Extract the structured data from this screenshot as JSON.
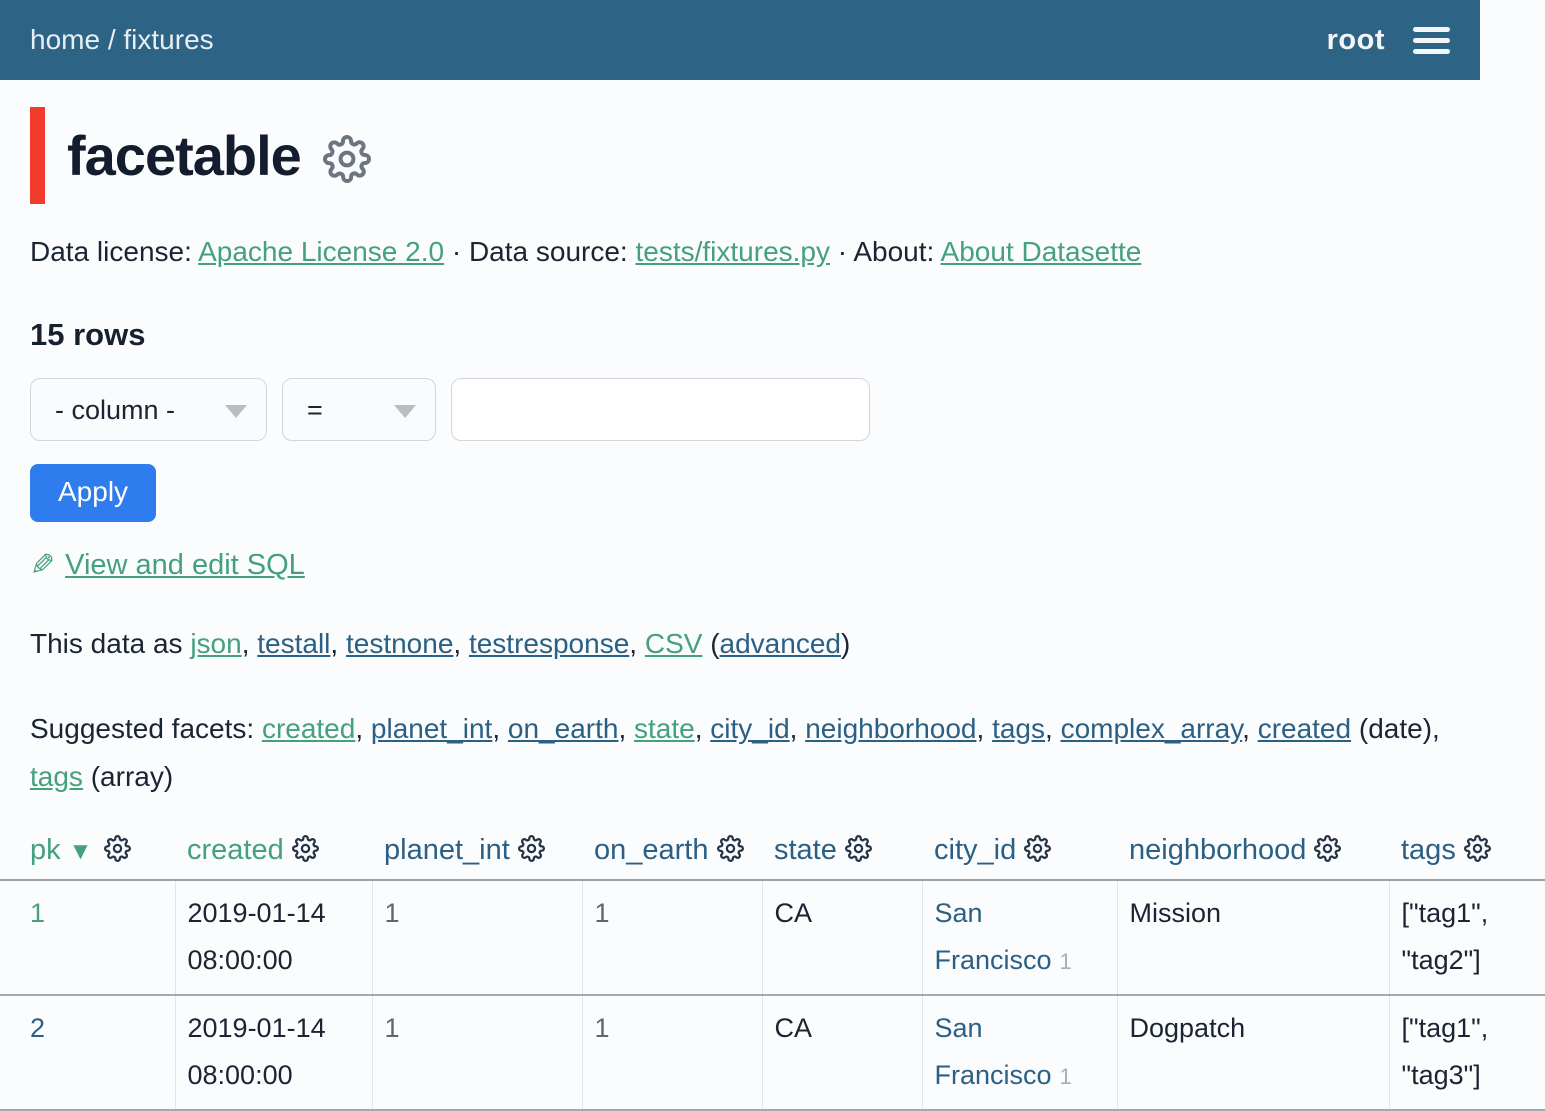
{
  "theme": {
    "header_bg": "#2d6486",
    "link_green": "#44a17b",
    "link_blue": "#2b6084",
    "accent_red": "#f03b2d",
    "button_blue": "#2e7ced"
  },
  "nav": {
    "breadcrumb_parts": [
      {
        "link": "home",
        "color": "white"
      },
      {
        "text": " / "
      },
      {
        "link": "fixtures",
        "color": "white"
      }
    ],
    "user": "root"
  },
  "page": {
    "title": "facetable"
  },
  "metadata_line": {
    "parts": [
      {
        "text": "Data license: "
      },
      {
        "link": "Apache License 2.0",
        "color": "green"
      },
      {
        "text": " · Data source: "
      },
      {
        "link": "tests/fixtures.py",
        "color": "green"
      },
      {
        "text": " · About: "
      },
      {
        "link": "About Datasette",
        "color": "green"
      }
    ]
  },
  "row_count": "15 rows",
  "filter": {
    "column_value": "- column -",
    "operator_value": "=",
    "input_value": "",
    "apply_label": "Apply"
  },
  "sql_link_label": "View and edit SQL",
  "export_line": {
    "parts": [
      {
        "text": "This data as "
      },
      {
        "link": "json",
        "color": "green"
      },
      {
        "text": ", "
      },
      {
        "link": "testall",
        "color": "blue"
      },
      {
        "text": ", "
      },
      {
        "link": "testnone",
        "color": "blue"
      },
      {
        "text": ", "
      },
      {
        "link": "testresponse",
        "color": "blue"
      },
      {
        "text": ", "
      },
      {
        "link": "CSV",
        "color": "green"
      },
      {
        "text": " ("
      },
      {
        "link": "advanced",
        "color": "blue"
      },
      {
        "text": ")"
      }
    ]
  },
  "facets_line": {
    "parts": [
      {
        "text": "Suggested facets: "
      },
      {
        "link": "created",
        "color": "green"
      },
      {
        "text": ", "
      },
      {
        "link": "planet_int",
        "color": "blue"
      },
      {
        "text": ", "
      },
      {
        "link": "on_earth",
        "color": "blue"
      },
      {
        "text": ", "
      },
      {
        "link": "state",
        "color": "green"
      },
      {
        "text": ", "
      },
      {
        "link": "city_id",
        "color": "blue"
      },
      {
        "text": ", "
      },
      {
        "link": "neighborhood",
        "color": "blue"
      },
      {
        "text": ", "
      },
      {
        "link": "tags",
        "color": "blue"
      },
      {
        "text": ", "
      },
      {
        "link": "complex_array",
        "color": "blue"
      },
      {
        "text": ", "
      },
      {
        "link": "created",
        "color": "blue"
      },
      {
        "text": " (date), "
      },
      {
        "link": "tags",
        "color": "green"
      },
      {
        "text": " (array)"
      }
    ]
  },
  "table": {
    "columns": [
      {
        "label": "pk",
        "color": "green",
        "sort": "desc"
      },
      {
        "label": "created",
        "color": "green"
      },
      {
        "label": "planet_int",
        "color": "blue"
      },
      {
        "label": "on_earth",
        "color": "blue"
      },
      {
        "label": "state",
        "color": "blue"
      },
      {
        "label": "city_id",
        "color": "blue"
      },
      {
        "label": "neighborhood",
        "color": "blue"
      },
      {
        "label": "tags",
        "color": "blue"
      }
    ],
    "rows": [
      {
        "cells": [
          {
            "text": "1",
            "style": "link-green"
          },
          {
            "text": "2019-01-14 08:00:00",
            "style": "dark"
          },
          {
            "text": "1",
            "style": "muted"
          },
          {
            "text": "1",
            "style": "muted"
          },
          {
            "text": "CA",
            "style": "dark"
          },
          {
            "text": "San Francisco",
            "style": "link-blue",
            "suffix": "1"
          },
          {
            "text": "Mission",
            "style": "dark"
          },
          {
            "text": "[\"tag1\", \"tag2\"]",
            "style": "dark"
          }
        ]
      },
      {
        "cells": [
          {
            "text": "2",
            "style": "link-blue"
          },
          {
            "text": "2019-01-14 08:00:00",
            "style": "dark"
          },
          {
            "text": "1",
            "style": "muted"
          },
          {
            "text": "1",
            "style": "muted"
          },
          {
            "text": "CA",
            "style": "dark"
          },
          {
            "text": "San Francisco",
            "style": "link-blue",
            "suffix": "1"
          },
          {
            "text": "Dogpatch",
            "style": "dark"
          },
          {
            "text": "[\"tag1\", \"tag3\"]",
            "style": "dark"
          }
        ]
      }
    ]
  }
}
